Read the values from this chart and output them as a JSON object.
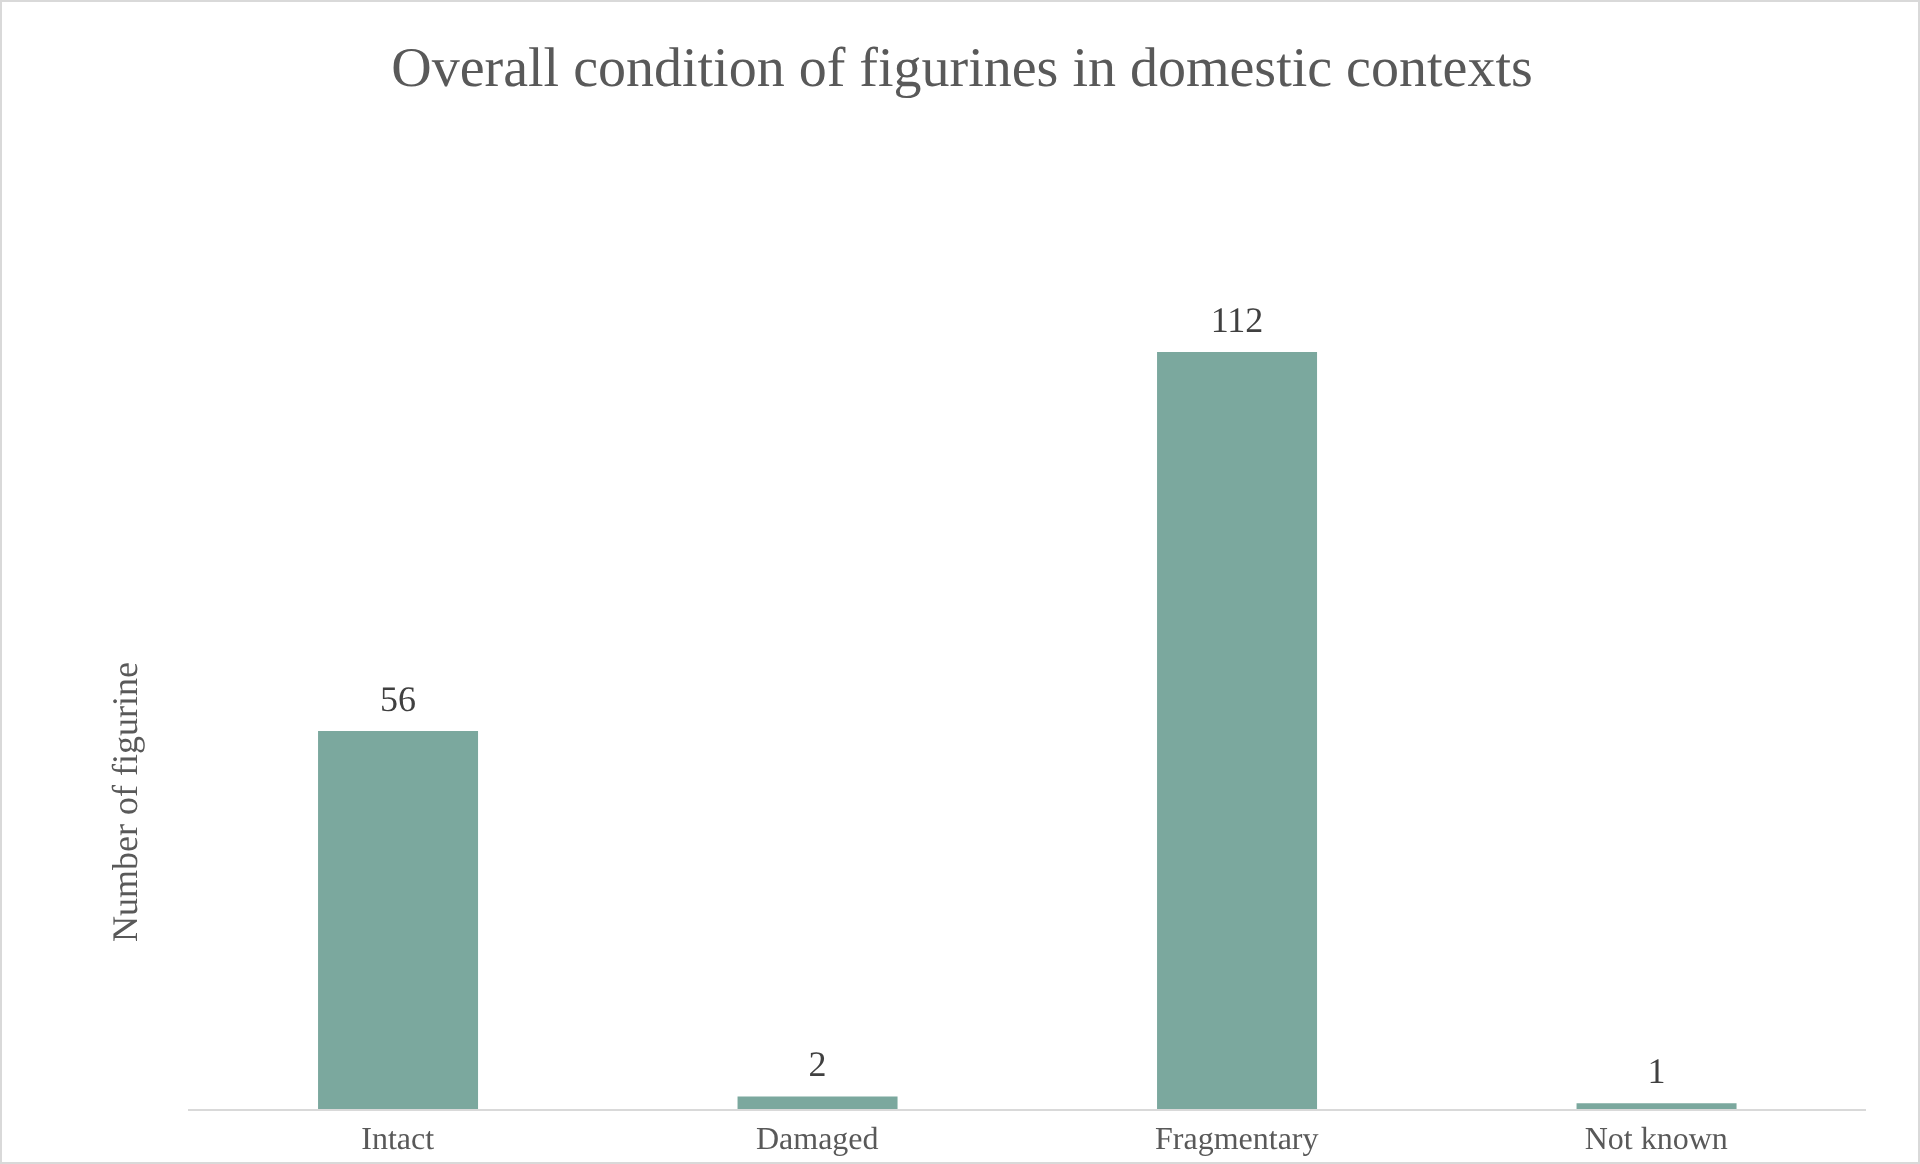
{
  "chart_data": {
    "type": "bar",
    "title": "Overall condition of figurines in domestic contexts",
    "ylabel": "Number of figurine",
    "categories": [
      "Intact",
      "Damaged",
      "Fragmentary",
      "Not known"
    ],
    "values": [
      56,
      2,
      112,
      1
    ],
    "color": "#7ba89e",
    "data_labels": true,
    "grid": false,
    "legend": false
  }
}
